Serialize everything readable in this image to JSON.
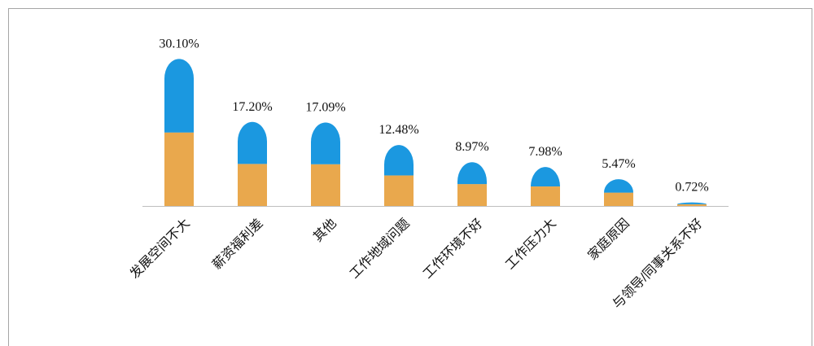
{
  "chart_data": {
    "type": "bar",
    "categories": [
      "发展空间不大",
      "薪资福利差",
      "其他",
      "工作地域问题",
      "工作环境不好",
      "工作压力大",
      "家庭原因",
      "与领导/同事关系不好"
    ],
    "values": [
      30.1,
      17.2,
      17.09,
      12.48,
      8.97,
      7.98,
      5.47,
      0.72
    ],
    "value_labels": [
      "30.10%",
      "17.20%",
      "17.09%",
      "12.48%",
      "8.97%",
      "7.98%",
      "5.47%",
      "0.72%"
    ],
    "colors": [
      "#e9a84d",
      "#1b98e0"
    ]
  }
}
